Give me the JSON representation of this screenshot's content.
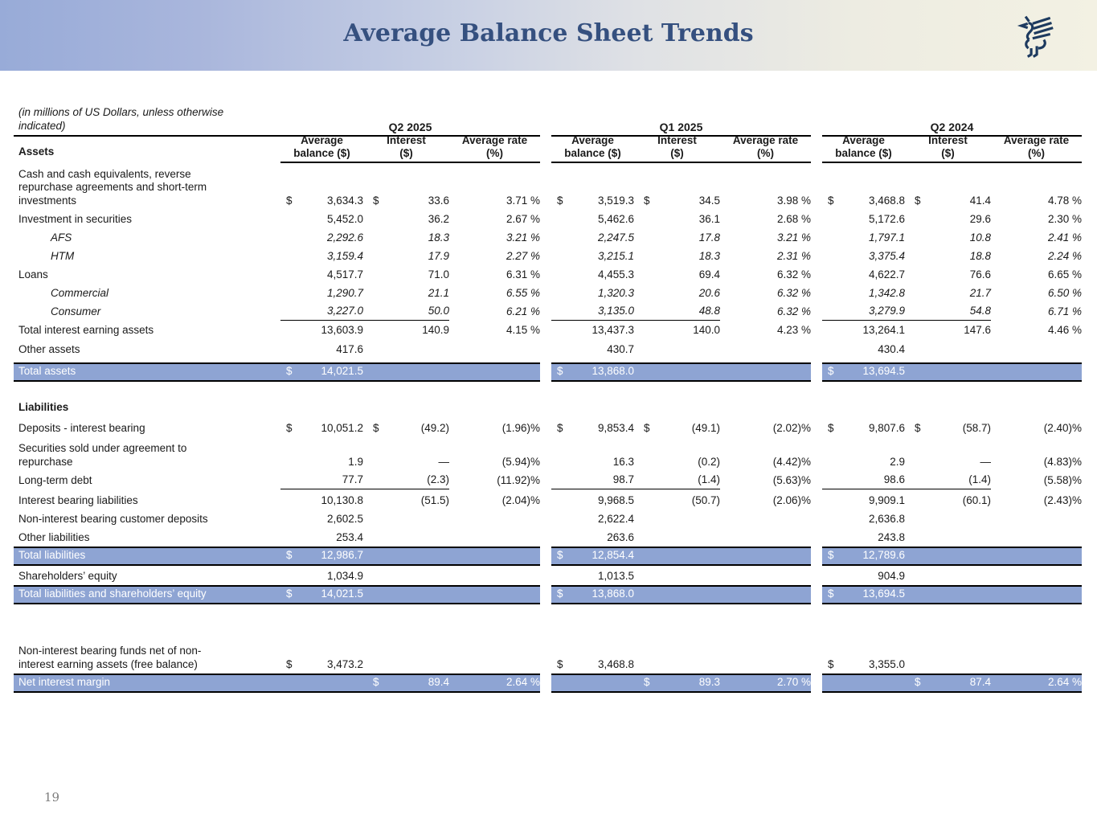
{
  "header": {
    "title": "Average Balance Sheet Trends"
  },
  "footer": {
    "page_number": "19"
  },
  "colors": {
    "header_gradient_left": "#98ABD8",
    "header_gradient_right": "#F3F1E3",
    "title_text": "#35507F",
    "logo_navy": "#1D3A5F",
    "highlight_row_background": "#8EA4D3",
    "highlight_row_text": "#FFFFFF"
  },
  "table": {
    "units_note": "(in millions of US Dollars, unless otherwise\nindicated)",
    "assets_heading": "Assets",
    "periods": [
      "Q2 2025",
      "Q1 2025",
      "Q2 2024"
    ],
    "column_headers": [
      "Average\nbalance ($)",
      "Interest\n($)",
      "Average rate\n(%)"
    ],
    "rows": [
      {
        "key": "cash-and-equivalents",
        "style": "plain",
        "label": "Cash and cash equivalents, reverse\nrepurchase agreements and short-term\ninvestments",
        "cells": [
          {
            "bd": "$",
            "bv": "3,634.3",
            "id": "$",
            "iv": "33.6",
            "rv": "3.71 %"
          },
          {
            "bd": "$",
            "bv": "3,519.3",
            "id": "$",
            "iv": "34.5",
            "rv": "3.98 %"
          },
          {
            "bd": "$",
            "bv": "3,468.8",
            "id": "$",
            "iv": "41.4",
            "rv": "4.78 %"
          }
        ]
      },
      {
        "key": "investment-in-securities",
        "style": "plain",
        "label": "Investment in securities",
        "cells": [
          {
            "bv": "5,452.0",
            "iv": "36.2",
            "rv": "2.67 %"
          },
          {
            "bv": "5,462.6",
            "iv": "36.1",
            "rv": "2.68 %"
          },
          {
            "bv": "5,172.6",
            "iv": "29.6",
            "rv": "2.30 %"
          }
        ]
      },
      {
        "key": "afs",
        "style": "sub",
        "label": "AFS",
        "cells": [
          {
            "bv": "2,292.6",
            "iv": "18.3",
            "rv": "3.21 %"
          },
          {
            "bv": "2,247.5",
            "iv": "17.8",
            "rv": "3.21 %"
          },
          {
            "bv": "1,797.1",
            "iv": "10.8",
            "rv": "2.41 %"
          }
        ]
      },
      {
        "key": "htm",
        "style": "sub",
        "label": "HTM",
        "cells": [
          {
            "bv": "3,159.4",
            "iv": "17.9",
            "rv": "2.27 %"
          },
          {
            "bv": "3,215.1",
            "iv": "18.3",
            "rv": "2.31 %"
          },
          {
            "bv": "3,375.4",
            "iv": "18.8",
            "rv": "2.24 %"
          }
        ]
      },
      {
        "key": "loans",
        "style": "plain",
        "label": "Loans",
        "cells": [
          {
            "bv": "4,517.7",
            "iv": "71.0",
            "rv": "6.31 %"
          },
          {
            "bv": "4,455.3",
            "iv": "69.4",
            "rv": "6.32 %"
          },
          {
            "bv": "4,622.7",
            "iv": "76.6",
            "rv": "6.65 %"
          }
        ]
      },
      {
        "key": "commercial",
        "style": "sub",
        "label": "Commercial",
        "cells": [
          {
            "bv": "1,290.7",
            "iv": "21.1",
            "rv": "6.55 %"
          },
          {
            "bv": "1,320.3",
            "iv": "20.6",
            "rv": "6.32 %"
          },
          {
            "bv": "1,342.8",
            "iv": "21.7",
            "rv": "6.50 %"
          }
        ]
      },
      {
        "key": "consumer",
        "style": "sub",
        "label": "Consumer",
        "cells": [
          {
            "bv": "3,227.0",
            "iv": "50.0",
            "rv": "6.21 %"
          },
          {
            "bv": "3,135.0",
            "iv": "48.8",
            "rv": "6.32 %"
          },
          {
            "bv": "3,279.9",
            "iv": "54.8",
            "rv": "6.71 %"
          }
        ]
      },
      {
        "key": "total-interest-earning-assets",
        "style": "plain",
        "label": "Total interest earning assets",
        "cells": [
          {
            "bv": "13,603.9",
            "iv": "140.9",
            "rv": "4.15 %"
          },
          {
            "bv": "13,437.3",
            "iv": "140.0",
            "rv": "4.23 %"
          },
          {
            "bv": "13,264.1",
            "iv": "147.6",
            "rv": "4.46 %"
          }
        ]
      },
      {
        "key": "other-assets",
        "style": "plain",
        "label": "Other assets",
        "cells": [
          {
            "bv": "417.6"
          },
          {
            "bv": "430.7"
          },
          {
            "bv": "430.4"
          }
        ]
      },
      {
        "key": "total-assets",
        "style": "highlight",
        "label": "Total assets",
        "cells": [
          {
            "bd": "$",
            "bv": "14,021.5"
          },
          {
            "bd": "$",
            "bv": "13,868.0"
          },
          {
            "bd": "$",
            "bv": "13,694.5"
          }
        ]
      },
      {
        "key": "liabilities-heading",
        "style": "heading",
        "label": "Liabilities"
      },
      {
        "key": "deposits-interest-bearing",
        "style": "plain",
        "label": "Deposits - interest bearing",
        "cells": [
          {
            "bd": "$",
            "bv": "10,051.2",
            "id": "$",
            "iv": "(49.2)",
            "rv": "(1.96)%"
          },
          {
            "bd": "$",
            "bv": "9,853.4",
            "id": "$",
            "iv": "(49.1)",
            "rv": "(2.02)%"
          },
          {
            "bd": "$",
            "bv": "9,807.6",
            "id": "$",
            "iv": "(58.7)",
            "rv": "(2.40)%"
          }
        ]
      },
      {
        "key": "securities-sold-repurchase",
        "style": "plain",
        "label": "Securities sold under agreement to\nrepurchase",
        "cells": [
          {
            "bv": "1.9",
            "iv": "—",
            "rv": "(5.94)%"
          },
          {
            "bv": "16.3",
            "iv": "(0.2)",
            "rv": "(4.42)%"
          },
          {
            "bv": "2.9",
            "iv": "—",
            "rv": "(4.83)%"
          }
        ]
      },
      {
        "key": "long-term-debt",
        "style": "plain",
        "label": "Long-term debt",
        "cells": [
          {
            "bv": "77.7",
            "iv": "(2.3)",
            "rv": "(11.92)%"
          },
          {
            "bv": "98.7",
            "iv": "(1.4)",
            "rv": "(5.63)%"
          },
          {
            "bv": "98.6",
            "iv": "(1.4)",
            "rv": "(5.58)%"
          }
        ]
      },
      {
        "key": "interest-bearing-liabilities",
        "style": "plain",
        "label": "Interest bearing liabilities",
        "cells": [
          {
            "bv": "10,130.8",
            "iv": "(51.5)",
            "rv": "(2.04)%"
          },
          {
            "bv": "9,968.5",
            "iv": "(50.7)",
            "rv": "(2.06)%"
          },
          {
            "bv": "9,909.1",
            "iv": "(60.1)",
            "rv": "(2.43)%"
          }
        ]
      },
      {
        "key": "non-interest-bearing-customer-deposits",
        "style": "plain",
        "label": "Non-interest bearing customer deposits",
        "cells": [
          {
            "bv": "2,602.5"
          },
          {
            "bv": "2,622.4"
          },
          {
            "bv": "2,636.8"
          }
        ]
      },
      {
        "key": "other-liabilities",
        "style": "plain",
        "label": "Other liabilities",
        "cells": [
          {
            "bv": "253.4"
          },
          {
            "bv": "263.6"
          },
          {
            "bv": "243.8"
          }
        ]
      },
      {
        "key": "total-liabilities",
        "style": "highlight",
        "label": "Total liabilities",
        "cells": [
          {
            "bd": "$",
            "bv": "12,986.7"
          },
          {
            "bd": "$",
            "bv": "12,854.4"
          },
          {
            "bd": "$",
            "bv": "12,789.6"
          }
        ]
      },
      {
        "key": "shareholders-equity",
        "style": "plain",
        "label": "Shareholders’ equity",
        "cells": [
          {
            "bv": "1,034.9"
          },
          {
            "bv": "1,013.5"
          },
          {
            "bv": "904.9"
          }
        ]
      },
      {
        "key": "total-liabilities-and-equity",
        "style": "highlight",
        "label": "Total liabilities and shareholders’ equity",
        "cells": [
          {
            "bd": "$",
            "bv": "14,021.5"
          },
          {
            "bd": "$",
            "bv": "13,868.0"
          },
          {
            "bd": "$",
            "bv": "13,694.5"
          }
        ]
      },
      {
        "key": "free-balance",
        "style": "plain",
        "label": "Non-interest bearing funds net of non-\ninterest earning assets (free balance)",
        "cells": [
          {
            "bd": "$",
            "bv": "3,473.2"
          },
          {
            "bd": "$",
            "bv": "3,468.8"
          },
          {
            "bd": "$",
            "bv": "3,355.0"
          }
        ]
      },
      {
        "key": "net-interest-margin",
        "style": "highlight",
        "label": "Net interest margin",
        "cells": [
          {
            "id": "$",
            "iv": "89.4",
            "rv": "2.64 %"
          },
          {
            "id": "$",
            "iv": "89.3",
            "rv": "2.70 %"
          },
          {
            "id": "$",
            "iv": "87.4",
            "rv": "2.64 %"
          }
        ]
      }
    ]
  }
}
